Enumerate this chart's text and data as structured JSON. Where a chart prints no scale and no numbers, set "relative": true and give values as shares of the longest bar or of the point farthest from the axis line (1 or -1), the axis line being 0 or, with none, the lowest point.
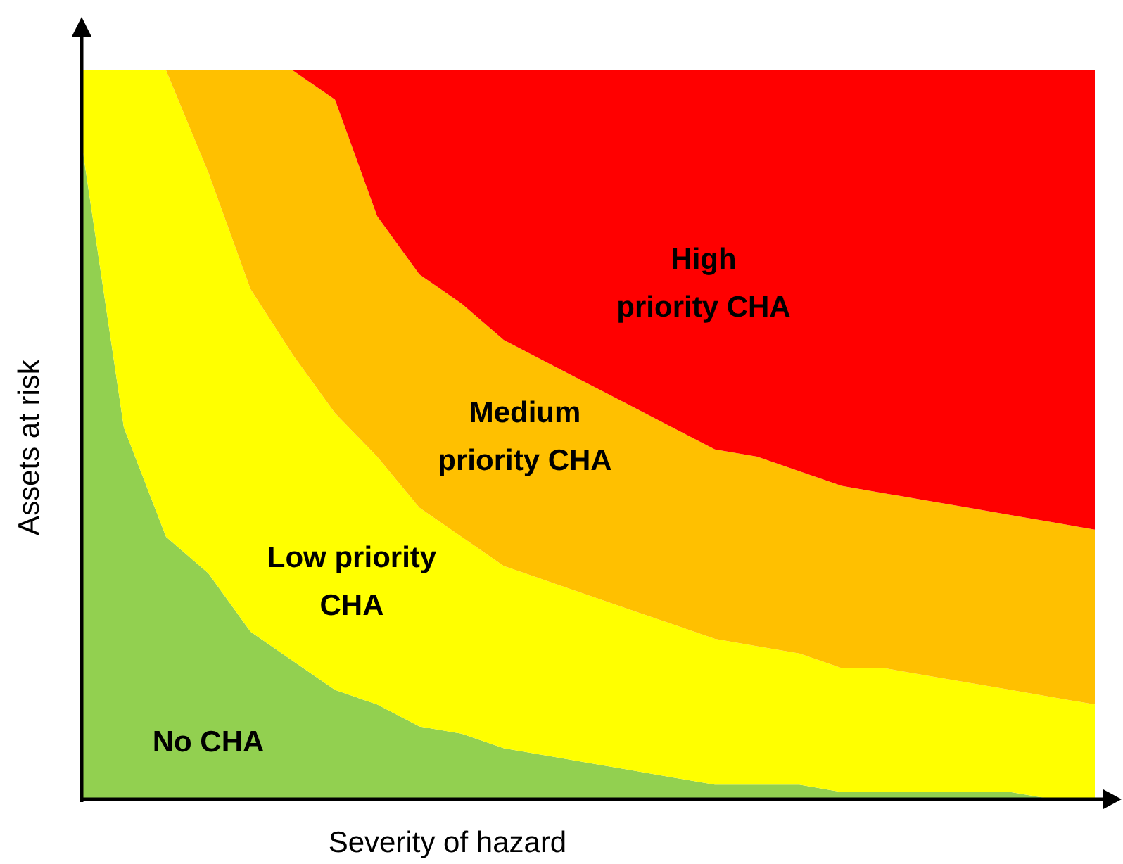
{
  "chart_data": {
    "type": "area",
    "relative": true,
    "stacked": true,
    "xlabel": "Severity of hazard",
    "ylabel": "Assets at risk",
    "categories": [
      null,
      null,
      null,
      null,
      null,
      null,
      null,
      null,
      null,
      null,
      null,
      null,
      null,
      null,
      null,
      null,
      null,
      null,
      null,
      null,
      null,
      null,
      null,
      null,
      null
    ],
    "series": [
      {
        "name": "No CHA",
        "color": "#92d050",
        "values": [
          0.9,
          0.51,
          0.36,
          0.31,
          0.23,
          0.19,
          0.15,
          0.13,
          0.1,
          0.09,
          0.07,
          0.06,
          0.05,
          0.04,
          0.03,
          0.02,
          0.02,
          0.02,
          0.01,
          0.01,
          0.01,
          0.01,
          0.01,
          0.0,
          0.0
        ]
      },
      {
        "name": "Low priority CHA",
        "color": "#ffff00",
        "values": [
          0.1,
          0.49,
          0.64,
          0.55,
          0.47,
          0.42,
          0.38,
          0.34,
          0.3,
          0.27,
          0.25,
          0.24,
          0.23,
          0.22,
          0.21,
          0.2,
          0.19,
          0.18,
          0.17,
          0.17,
          0.16,
          0.15,
          0.14,
          0.14,
          0.13
        ]
      },
      {
        "name": "Medium priority CHA",
        "color": "#ffc000",
        "values": [
          0,
          0,
          0,
          0.14,
          0.3,
          0.39,
          0.43,
          0.33,
          0.32,
          0.32,
          0.31,
          0.3,
          0.29,
          0.28,
          0.27,
          0.26,
          0.26,
          0.25,
          0.25,
          0.24,
          0.24,
          0.24,
          0.24,
          0.24,
          0.24
        ]
      },
      {
        "name": "High priority CHA",
        "color": "#ff0000",
        "values": [
          0,
          0,
          0,
          0,
          0,
          0,
          0.04,
          0.2,
          0.28,
          0.32,
          0.37,
          0.4,
          0.43,
          0.46,
          0.49,
          0.52,
          0.53,
          0.55,
          0.57,
          0.58,
          0.59,
          0.6,
          0.61,
          0.62,
          0.63
        ]
      }
    ]
  }
}
